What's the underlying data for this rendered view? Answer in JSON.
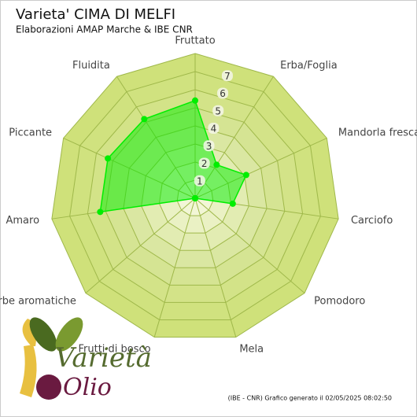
{
  "chart_data": {
    "type": "radar",
    "title": "Varieta' CIMA DI MELFI",
    "subtitle": "Elaborazioni AMAP Marche & IBE CNR",
    "footer": "(IBE - CNR) Grafico generato il 02/05/2025 08:02:50",
    "logo": [
      "Varietà",
      "Olio"
    ],
    "categories": [
      "Fruttato",
      "Erba/Foglia",
      "Mandorla fresca",
      "Carciofo",
      "Pomodoro",
      "Mela",
      "Frutti di bosco",
      "Erbe aromatiche",
      "Amaro",
      "Piccante",
      "Fluidita"
    ],
    "values": [
      5.4,
      2.2,
      3.1,
      2.1,
      0,
      0,
      0,
      0,
      5.3,
      5.3,
      5.2
    ],
    "color": "#00ee00",
    "ylim": [
      0,
      8
    ],
    "yticks": [
      1,
      2,
      3,
      4,
      5,
      6,
      7
    ]
  }
}
